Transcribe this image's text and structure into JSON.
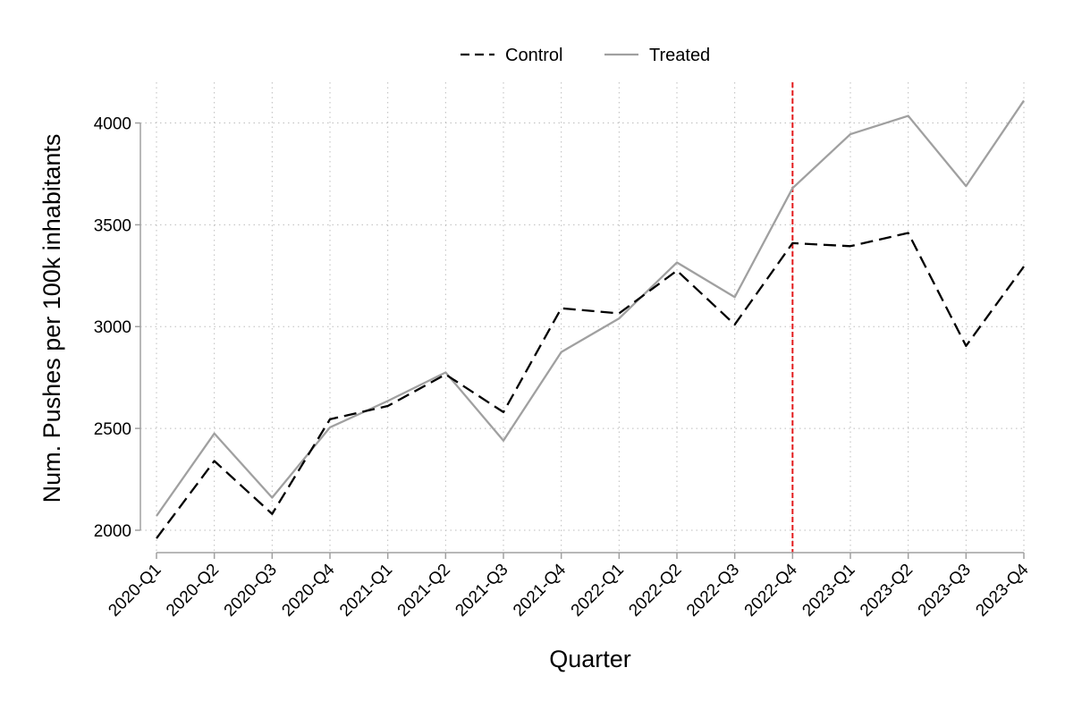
{
  "chart_data": {
    "type": "line",
    "title": "",
    "xlabel": "Quarter",
    "ylabel": "Num. Pushes per 100k inhabitants",
    "categories": [
      "2020-Q1",
      "2020-Q2",
      "2020-Q3",
      "2020-Q4",
      "2021-Q1",
      "2021-Q2",
      "2021-Q3",
      "2021-Q4",
      "2022-Q1",
      "2022-Q2",
      "2022-Q3",
      "2022-Q4",
      "2023-Q1",
      "2023-Q2",
      "2023-Q3",
      "2023-Q4"
    ],
    "series": [
      {
        "name": "Control",
        "style": "dashed",
        "color": "#000000",
        "values": [
          1960,
          2340,
          2080,
          2545,
          2610,
          2765,
          2580,
          3090,
          3065,
          3275,
          3010,
          3410,
          3395,
          3460,
          2905,
          3295
        ]
      },
      {
        "name": "Treated",
        "style": "solid",
        "color": "#a0a0a0",
        "values": [
          2070,
          2475,
          2160,
          2505,
          2635,
          2775,
          2440,
          2875,
          3040,
          3315,
          3145,
          3680,
          3945,
          4035,
          3690,
          4110
        ]
      }
    ],
    "ylim": [
      1890,
      4200
    ],
    "yticks": [
      2000,
      2500,
      3000,
      3500,
      4000
    ],
    "grid": true,
    "legend_position": "top-center",
    "reference_line": {
      "x": "2022-Q4",
      "color": "#e31a1c",
      "style": "dashed"
    }
  }
}
